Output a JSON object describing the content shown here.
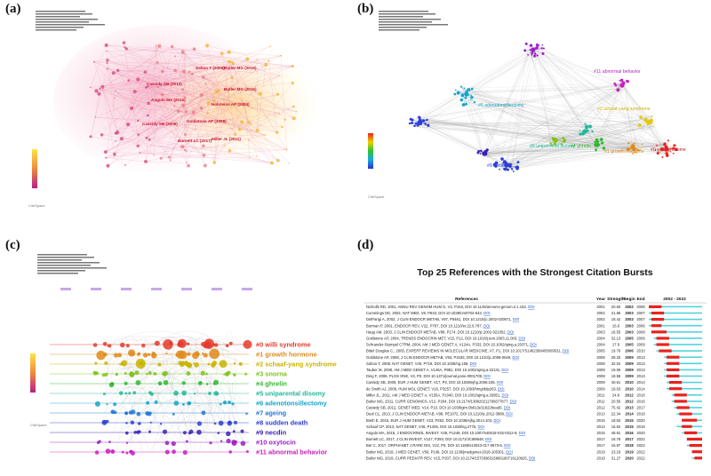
{
  "panels": {
    "a": {
      "label": "(a)"
    },
    "b": {
      "label": "(b)"
    },
    "c": {
      "label": "(c)"
    },
    "d": {
      "label": "(d)"
    }
  },
  "panel_a": {
    "authors": [
      "Butler MG (2019)",
      "Sahoo T (2008)",
      "Butler MG (2016)",
      "Cassidy SB (2012)",
      "Angulo MA (2015)",
      "Holsteins AP (2004)",
      "Cassidy SB (2009)",
      "Goldstone AP (2008)",
      "Miller JL (2011)",
      "Burnett LC (2017)"
    ],
    "watermark": "CiteSpace"
  },
  "panel_b": {
    "clusters": [
      "#11 abnormal behavior",
      "#6 adenotonsillectomy",
      "#2 schaaf-yang syndrome",
      "#0 willi syndrome",
      "#5 uniparental disomy",
      "#4 ghrelin",
      "#1 growth hormone",
      "#9 necdin"
    ],
    "watermark": "CiteSpace"
  },
  "panel_c": {
    "legend": [
      {
        "label": "#0 willi syndrome",
        "color": "#e53a2a"
      },
      {
        "label": "#1 growth hormone",
        "color": "#e08a1a"
      },
      {
        "label": "#2 schaaf-yang syndrome",
        "color": "#c8b400"
      },
      {
        "label": "#3 snorna",
        "color": "#7cc41a"
      },
      {
        "label": "#4 ghrelin",
        "color": "#2fb82f"
      },
      {
        "label": "#5 uniparental disomy",
        "color": "#1fb89a"
      },
      {
        "label": "#6 adenotonsillectomy",
        "color": "#14a5c8"
      },
      {
        "label": "#7 ageing",
        "color": "#1f78d6"
      },
      {
        "label": "#8 sudden death",
        "color": "#2a3ed6"
      },
      {
        "label": "#9 necdin",
        "color": "#3a20b8"
      },
      {
        "label": "#10 oxytocin",
        "color": "#9a1ec8"
      },
      {
        "label": "#11 abnormal behavior",
        "color": "#c81ec0"
      }
    ],
    "watermark": "CiteSpace"
  },
  "chart_data": {
    "type": "table",
    "title": "Top 25 References with the Strongest Citation Bursts",
    "columns": [
      "References",
      "Year",
      "Strength",
      "Begin",
      "End",
      "2002 - 2022"
    ],
    "range": [
      2002,
      2022
    ],
    "rows": [
      {
        "ref": "Nicholls RD, 2001, ANNU REV GENOM HUM G, V2, P153, DOI 10.1146/annurev.genom.2.1.153,",
        "year": 2001,
        "strength": "20.60",
        "begin": 2002,
        "end": 2006
      },
      {
        "ref": "Cummings DE, 2002, NAT MED, V8, P643, DOI 10.1038/nm0702-643,",
        "year": 2002,
        "strength": "21.85",
        "begin": 2003,
        "end": 2007
      },
      {
        "ref": "DelParigi A, 2002, J CLIN ENDOCR METAB, V87, P5461, DOI 10.1210/jc.2002-020871,",
        "year": 2002,
        "strength": "18.42",
        "begin": 2003,
        "end": 2007
      },
      {
        "ref": "Burman P, 2001, ENDOCR REV, V22, P787, DOI 10.1210/er.22.6.787,",
        "year": 2001,
        "strength": "16.6",
        "begin": 2003,
        "end": 2006
      },
      {
        "ref": "Haqq AM, 2003, J CLIN ENDOCR METAB, V88, P174, DOI 10.1210/jc.2002-021052,",
        "year": 2003,
        "strength": "16.55",
        "begin": 2003,
        "end": 2008
      },
      {
        "ref": "Goldstone AP, 2004, TRENDS ENDOCRIN MET, V15, P12, DOI 10.1016/j.tem.2003.11.003,",
        "year": 2004,
        "strength": "32.13",
        "begin": 2005,
        "end": 2009
      },
      {
        "ref": "Schrander-Stumpel CTRM, 2004, AM J MED GENET A, V124A, P333, DOI 10.1002/ajmg.a.20371,",
        "year": 2004,
        "strength": "17.6",
        "begin": 2005,
        "end": 2009
      },
      {
        "ref": "Bittel Douglas C., 2005, EXPERT REVIEWS IN MOLECULAR MEDICINE, V7, P1, DOI 10.1017/S1462399405009531,",
        "year": 2005,
        "strength": "19.76",
        "begin": 2006,
        "end": 2010
      },
      {
        "ref": "Goldstone AP, 2008, J CLIN ENDOCR METAB, V93, P4183, DOI 10.1210/jc.2008-0649,",
        "year": 2008,
        "strength": "28.33",
        "begin": 2009,
        "end": 2013
      },
      {
        "ref": "Sahoo T, 2008, NAT GENET, V40, P719, DOI 10.1038/ng.158,",
        "year": 2008,
        "strength": "32.04",
        "begin": 2009,
        "end": 2013
      },
      {
        "ref": "Tauber M, 2008, AM J MED GENET A, V146A, P881, DOI 10.1002/ajmg.a.32131,",
        "year": 2008,
        "strength": "19.05",
        "begin": 2009,
        "end": 2013
      },
      {
        "ref": "Ding F, 2008, PLOS ONE, V3, P0, DOI 10.1371/journal.pone.0001709,",
        "year": 2008,
        "strength": "18.58",
        "begin": 2009,
        "end": 2013
      },
      {
        "ref": "Cassidy SB, 2009, EUR J HUM GENET, V17, P3, DOI 10.1038/ejhg.2008.165,",
        "year": 2009,
        "strength": "40.61",
        "begin": 2010,
        "end": 2014
      },
      {
        "ref": "de Smith AJ, 2009, HUM MOL GENET, V18, P3257, DOI 10.1093/hmg/ddp263,",
        "year": 2009,
        "strength": "19.63",
        "begin": 2010,
        "end": 2014
      },
      {
        "ref": "Miller JL, 2011, AM J MED GENET A, V155A, P1040, DOI 10.1002/ajmg.a.33951,",
        "year": 2011,
        "strength": "24.8",
        "begin": 2012,
        "end": 2016
      },
      {
        "ref": "Butler MG, 2011, CURR GENOMICS, V12, P204, DOI 10.2174/138920211795677877,",
        "year": 2011,
        "strength": "20.56",
        "begin": 2012,
        "end": 2016
      },
      {
        "ref": "Cassidy SB, 2012, GENET MED, V14, P10, DOI 10.1038/gim.0b013e31822bead0,",
        "year": 2012,
        "strength": "75.42",
        "begin": 2013,
        "end": 2017
      },
      {
        "ref": "Deal CL, 2013, J CLIN ENDOCR METAB, V98, PE1072, DOI 10.1210/jc.2012-3888,",
        "year": 2013,
        "strength": "22.34",
        "begin": 2014,
        "end": 2018
      },
      {
        "ref": "Bieth E, 2015, EUR J HUM GENET, V23, P252, DOI 10.1038/ejhg.2014.103,",
        "year": 2015,
        "strength": "18.53",
        "begin": 2015,
        "end": 2020
      },
      {
        "ref": "Schaaf CP, 2013, NAT GENET, V45, P1405, DOI 10.1038/ng.2776,",
        "year": 2013,
        "strength": "16.52",
        "begin": 2015,
        "end": 2018
      },
      {
        "ref": "Angulo MA, 2015, J ENDOCRINOL INVEST, V38, P1249, DOI 10.1007/s40618-015-0312-9,",
        "year": 2015,
        "strength": "48.91",
        "begin": 2016,
        "end": 2020
      },
      {
        "ref": "Burnett LC, 2017, J CLIN INVEST, V127, P293, DOI 10.1172/JCI88648,",
        "year": 2017,
        "strength": "16.76",
        "begin": 2017,
        "end": 2022
      },
      {
        "ref": "Bar C, 2017, ORPHANET J RARE DIS, V12, P0, DOI 10.1186/s13023-017-0673-6,",
        "year": 2017,
        "strength": "16.87",
        "begin": 2018,
        "end": 2022
      },
      {
        "ref": "Butler MG, 2019, J MED GENET, V56, P149, DOI 10.1136/jmedgenet-2018-105301,",
        "year": 2019,
        "strength": "23.18",
        "begin": 2019,
        "end": 2022
      },
      {
        "ref": "Butler MG, 2019, CURR PEDIATR REV, V15, P207, DOI 10.2174/1573396315666190716120925,",
        "year": 2019,
        "strength": "31.27",
        "begin": 2020,
        "end": 2022
      }
    ],
    "doi_link": "DOI",
    "colors": {
      "burst": "#e8231e",
      "base": "#4fd3dd",
      "link": "#1a55c9"
    }
  }
}
